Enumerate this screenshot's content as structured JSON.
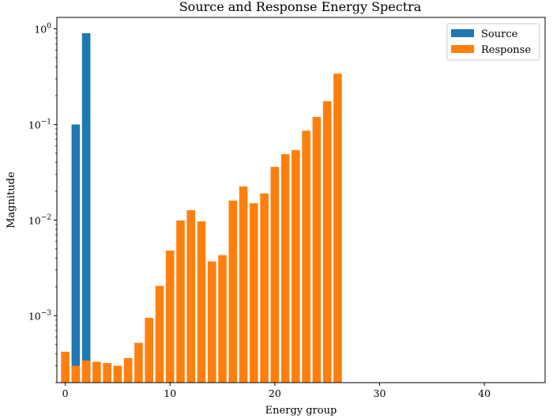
{
  "chart_data": {
    "type": "bar",
    "title": "Source and Response Energy Spectra",
    "xlabel": "Energy group",
    "ylabel": "Magnitude",
    "xlim": [
      -0.8,
      45.8
    ],
    "ylim_log10": [
      -3.7,
      0.12
    ],
    "yscale": "log",
    "grid": false,
    "legend_position": "top-right",
    "x_ticks": [
      0,
      10,
      20,
      30,
      40
    ],
    "x_tick_labels": [
      "0",
      "10",
      "20",
      "30",
      "40"
    ],
    "y_ticks": [
      0.001,
      0.01,
      0.1,
      1
    ],
    "y_tick_labels": [
      [
        "10",
        "−3"
      ],
      [
        "10",
        "−2"
      ],
      [
        "10",
        "−1"
      ],
      [
        "10",
        "0"
      ]
    ],
    "series": [
      {
        "name": "Source",
        "color": "#1f77b4",
        "x": [
          1,
          2
        ],
        "values": [
          0.1,
          0.9
        ]
      },
      {
        "name": "Response",
        "color": "#ff7f0e",
        "x": [
          0,
          1,
          2,
          3,
          4,
          5,
          6,
          7,
          8,
          9,
          10,
          11,
          12,
          13,
          14,
          15,
          16,
          17,
          18,
          19,
          20,
          21,
          22,
          23,
          24,
          25,
          26
        ],
        "values": [
          0.00042,
          0.0003,
          0.00034,
          0.00033,
          0.00032,
          0.0003,
          0.00036,
          0.00052,
          0.00095,
          0.00205,
          0.0048,
          0.0099,
          0.0127,
          0.0097,
          0.0037,
          0.0043,
          0.016,
          0.0225,
          0.015,
          0.019,
          0.036,
          0.049,
          0.054,
          0.086,
          0.12,
          0.175,
          0.34
        ]
      }
    ]
  }
}
